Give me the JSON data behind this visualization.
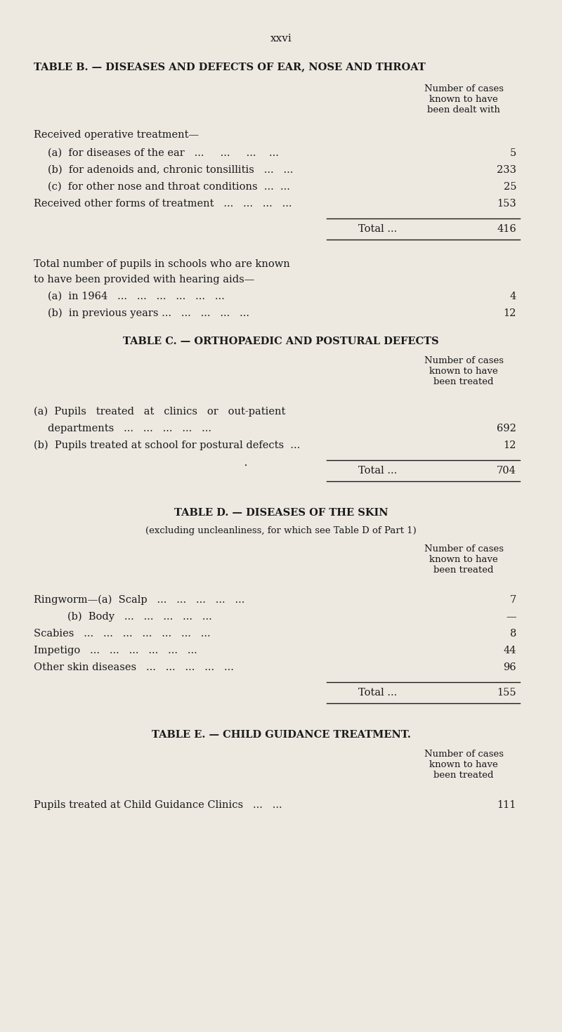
{
  "bg_color": "#ede9e1",
  "text_color": "#1a1a1a",
  "page_number": "xxvi",
  "table_b_title": "TABLE B. — DISEASES AND DEFECTS OF EAR, NOSE AND THROAT",
  "table_b_col_header_b": "Number of cases\nknown to have\nbeen dealt with",
  "table_c_title": "TABLE C. — ORTHOPAEDIC AND POSTURAL DEFECTS",
  "table_c_col_header": "Number of cases\nknown to have\nbeen treated",
  "table_d_title": "TABLE D. — DISEASES OF THE SKIN",
  "table_d_subtitle": "(excluding uncleanliness, for which see Table D of Part 1)",
  "table_d_col_header": "Number of cases\nknown to have\nbeen treated",
  "table_e_title": "TABLE E. — CHILD GUIDANCE TREATMENT.",
  "table_e_col_header": "Number of cases\nknown to have\nbeen treated"
}
